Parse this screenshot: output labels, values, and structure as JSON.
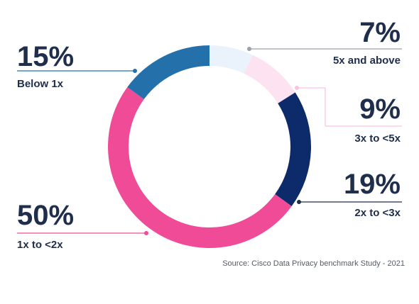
{
  "chart_data": {
    "type": "pie",
    "variant": "donut",
    "slices": [
      {
        "label": "5x and above",
        "value": 7,
        "value_label": "7%",
        "color": "#eaf2fb"
      },
      {
        "label": "3x to <5x",
        "value": 9,
        "value_label": "9%",
        "color": "#fde3f1"
      },
      {
        "label": "2x to <3x",
        "value": 19,
        "value_label": "19%",
        "color": "#0d2b6a"
      },
      {
        "label": "1x to <2x",
        "value": 50,
        "value_label": "50%",
        "color": "#ef4b97"
      },
      {
        "label": "Below 1x",
        "value": 15,
        "value_label": "15%",
        "color": "#2470ab"
      }
    ],
    "start": "top",
    "direction": "clockwise",
    "source": "Source: Cisco Data Privacy benchmark Study - 2021"
  }
}
